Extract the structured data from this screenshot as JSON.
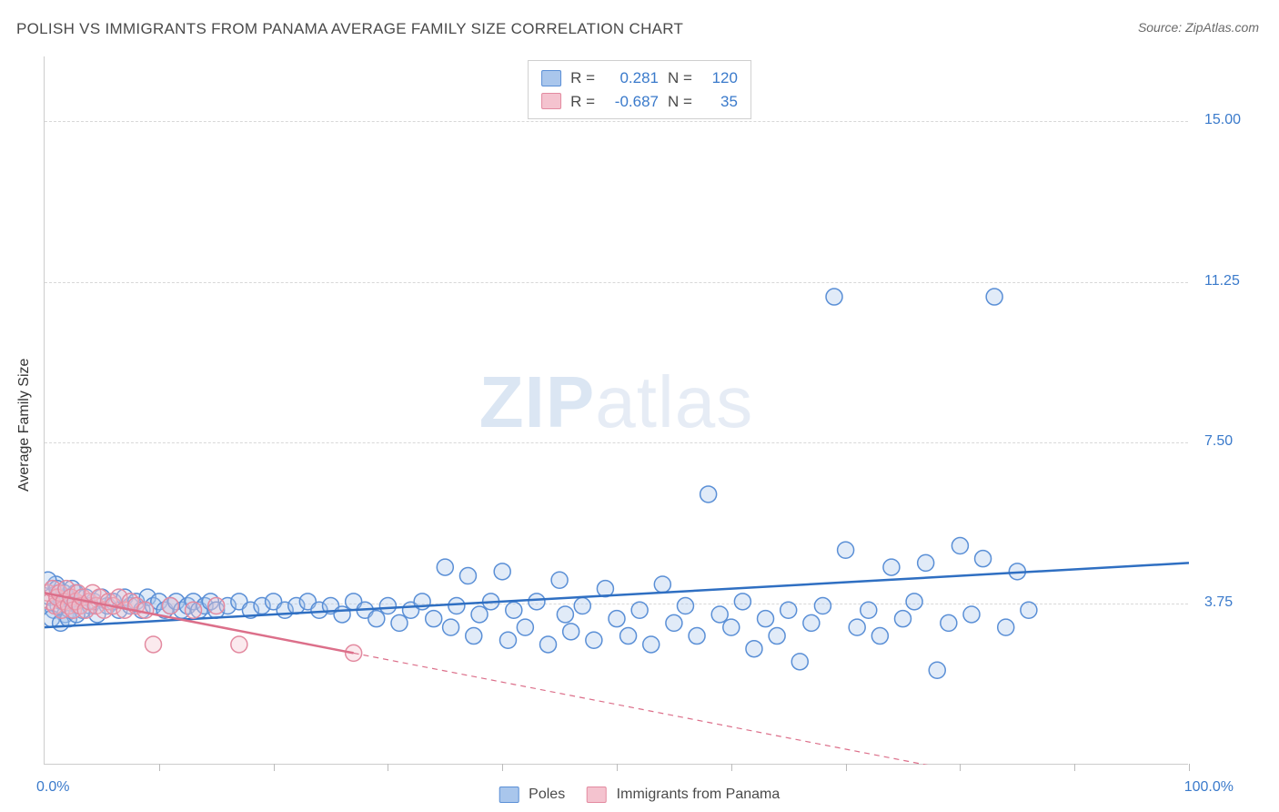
{
  "title": "POLISH VS IMMIGRANTS FROM PANAMA AVERAGE FAMILY SIZE CORRELATION CHART",
  "source": "Source: ZipAtlas.com",
  "y_axis_label": "Average Family Size",
  "watermark_bold": "ZIP",
  "watermark_rest": "atlas",
  "chart": {
    "type": "scatter",
    "xlim": [
      0,
      100
    ],
    "ylim": [
      0,
      16.5
    ],
    "x_min_label": "0.0%",
    "x_max_label": "100.0%",
    "y_ticks": [
      3.75,
      7.5,
      11.25,
      15.0
    ],
    "y_tick_labels": [
      "3.75",
      "7.50",
      "11.25",
      "15.00"
    ],
    "x_ticks": [
      10,
      20,
      30,
      40,
      50,
      60,
      70,
      80,
      90,
      100
    ],
    "background_color": "#ffffff",
    "grid_color": "#d8d8d8",
    "axis_color": "#cccccc",
    "marker_radius": 9,
    "marker_stroke_width": 1.5,
    "marker_fill_opacity": 0.35,
    "trend_line_width": 2.5,
    "series": [
      {
        "name": "Poles",
        "color_fill": "#a9c6ec",
        "color_stroke": "#5a8fd6",
        "line_color": "#2f6fc2",
        "R": "0.281",
        "N": "120",
        "trend": {
          "x1": 0,
          "y1": 3.2,
          "x2": 100,
          "y2": 4.7,
          "dashed_extension": false
        },
        "points": [
          [
            0.5,
            3.9
          ],
          [
            0.8,
            3.6
          ],
          [
            1.0,
            4.2
          ],
          [
            1.2,
            3.7
          ],
          [
            1.5,
            3.8
          ],
          [
            1.8,
            3.5
          ],
          [
            2.0,
            3.9
          ],
          [
            2.2,
            3.6
          ],
          [
            2.5,
            3.8
          ],
          [
            2.7,
            4.0
          ],
          [
            3.0,
            3.7
          ],
          [
            3.3,
            3.6
          ],
          [
            3.6,
            3.9
          ],
          [
            4.0,
            3.7
          ],
          [
            4.3,
            3.8
          ],
          [
            4.6,
            3.5
          ],
          [
            5.0,
            3.9
          ],
          [
            5.5,
            3.7
          ],
          [
            6.0,
            3.8
          ],
          [
            6.5,
            3.6
          ],
          [
            7.0,
            3.9
          ],
          [
            7.5,
            3.7
          ],
          [
            8.0,
            3.8
          ],
          [
            8.5,
            3.6
          ],
          [
            9.0,
            3.9
          ],
          [
            9.5,
            3.7
          ],
          [
            10.0,
            3.8
          ],
          [
            10.5,
            3.6
          ],
          [
            11.0,
            3.7
          ],
          [
            11.5,
            3.8
          ],
          [
            12.0,
            3.6
          ],
          [
            12.5,
            3.7
          ],
          [
            13.0,
            3.8
          ],
          [
            13.5,
            3.6
          ],
          [
            14.0,
            3.7
          ],
          [
            14.5,
            3.8
          ],
          [
            15.0,
            3.6
          ],
          [
            16.0,
            3.7
          ],
          [
            17.0,
            3.8
          ],
          [
            18.0,
            3.6
          ],
          [
            19.0,
            3.7
          ],
          [
            20.0,
            3.8
          ],
          [
            21.0,
            3.6
          ],
          [
            22.0,
            3.7
          ],
          [
            23.0,
            3.8
          ],
          [
            24.0,
            3.6
          ],
          [
            25.0,
            3.7
          ],
          [
            26.0,
            3.5
          ],
          [
            27.0,
            3.8
          ],
          [
            28.0,
            3.6
          ],
          [
            29.0,
            3.4
          ],
          [
            30.0,
            3.7
          ],
          [
            31.0,
            3.3
          ],
          [
            32.0,
            3.6
          ],
          [
            33.0,
            3.8
          ],
          [
            34.0,
            3.4
          ],
          [
            35.0,
            4.6
          ],
          [
            35.5,
            3.2
          ],
          [
            36.0,
            3.7
          ],
          [
            37.0,
            4.4
          ],
          [
            37.5,
            3.0
          ],
          [
            38.0,
            3.5
          ],
          [
            39.0,
            3.8
          ],
          [
            40.0,
            4.5
          ],
          [
            40.5,
            2.9
          ],
          [
            41.0,
            3.6
          ],
          [
            42.0,
            3.2
          ],
          [
            43.0,
            3.8
          ],
          [
            44.0,
            2.8
          ],
          [
            45.0,
            4.3
          ],
          [
            45.5,
            3.5
          ],
          [
            46.0,
            3.1
          ],
          [
            47.0,
            3.7
          ],
          [
            48.0,
            2.9
          ],
          [
            49.0,
            4.1
          ],
          [
            50.0,
            3.4
          ],
          [
            51.0,
            3.0
          ],
          [
            52.0,
            3.6
          ],
          [
            53.0,
            2.8
          ],
          [
            54.0,
            4.2
          ],
          [
            55.0,
            3.3
          ],
          [
            56.0,
            3.7
          ],
          [
            57.0,
            3.0
          ],
          [
            58.0,
            6.3
          ],
          [
            59.0,
            3.5
          ],
          [
            60.0,
            3.2
          ],
          [
            61.0,
            3.8
          ],
          [
            62.0,
            2.7
          ],
          [
            63.0,
            3.4
          ],
          [
            64.0,
            3.0
          ],
          [
            65.0,
            3.6
          ],
          [
            66.0,
            2.4
          ],
          [
            67.0,
            3.3
          ],
          [
            68.0,
            3.7
          ],
          [
            69.0,
            10.9
          ],
          [
            70.0,
            5.0
          ],
          [
            71.0,
            3.2
          ],
          [
            72.0,
            3.6
          ],
          [
            73.0,
            3.0
          ],
          [
            74.0,
            4.6
          ],
          [
            75.0,
            3.4
          ],
          [
            76.0,
            3.8
          ],
          [
            77.0,
            4.7
          ],
          [
            78.0,
            2.2
          ],
          [
            79.0,
            3.3
          ],
          [
            80.0,
            5.1
          ],
          [
            81.0,
            3.5
          ],
          [
            82.0,
            4.8
          ],
          [
            83.0,
            10.9
          ],
          [
            84.0,
            3.2
          ],
          [
            85.0,
            4.5
          ],
          [
            86.0,
            3.6
          ],
          [
            0.3,
            4.3
          ],
          [
            0.6,
            3.4
          ],
          [
            1.1,
            4.1
          ],
          [
            1.4,
            3.3
          ],
          [
            1.7,
            4.0
          ],
          [
            2.1,
            3.4
          ],
          [
            2.4,
            4.1
          ],
          [
            2.8,
            3.5
          ]
        ]
      },
      {
        "name": "Immigrants from Panama",
        "color_fill": "#f4c3cf",
        "color_stroke": "#e38aa0",
        "line_color": "#dc6f8a",
        "R": "-0.687",
        "N": "35",
        "trend": {
          "x1": 0,
          "y1": 4.0,
          "x2": 27,
          "y2": 2.6,
          "dashed_extension": true,
          "dash_x2": 100,
          "dash_y2": -1.2
        },
        "points": [
          [
            0.3,
            4.0
          ],
          [
            0.5,
            3.8
          ],
          [
            0.7,
            4.1
          ],
          [
            0.9,
            3.7
          ],
          [
            1.1,
            3.9
          ],
          [
            1.3,
            4.0
          ],
          [
            1.5,
            3.6
          ],
          [
            1.7,
            3.8
          ],
          [
            1.9,
            4.1
          ],
          [
            2.1,
            3.7
          ],
          [
            2.3,
            3.9
          ],
          [
            2.5,
            3.6
          ],
          [
            2.7,
            3.8
          ],
          [
            2.9,
            4.0
          ],
          [
            3.1,
            3.7
          ],
          [
            3.3,
            3.9
          ],
          [
            3.6,
            3.6
          ],
          [
            3.9,
            3.8
          ],
          [
            4.2,
            4.0
          ],
          [
            4.5,
            3.7
          ],
          [
            4.8,
            3.9
          ],
          [
            5.2,
            3.6
          ],
          [
            5.6,
            3.8
          ],
          [
            6.0,
            3.7
          ],
          [
            6.5,
            3.9
          ],
          [
            7.0,
            3.6
          ],
          [
            7.5,
            3.8
          ],
          [
            8.0,
            3.7
          ],
          [
            8.8,
            3.6
          ],
          [
            9.5,
            2.8
          ],
          [
            11.0,
            3.7
          ],
          [
            13.0,
            3.6
          ],
          [
            15.0,
            3.7
          ],
          [
            17.0,
            2.8
          ],
          [
            27.0,
            2.6
          ]
        ]
      }
    ]
  },
  "legend": {
    "series1_label": "Poles",
    "series2_label": "Immigrants from Panama"
  },
  "stats_box": {
    "r_label": "R =",
    "n_label": "N ="
  },
  "colors": {
    "title_text": "#4a4a4a",
    "source_text": "#6a6a6a",
    "tick_label": "#3a7acb"
  }
}
